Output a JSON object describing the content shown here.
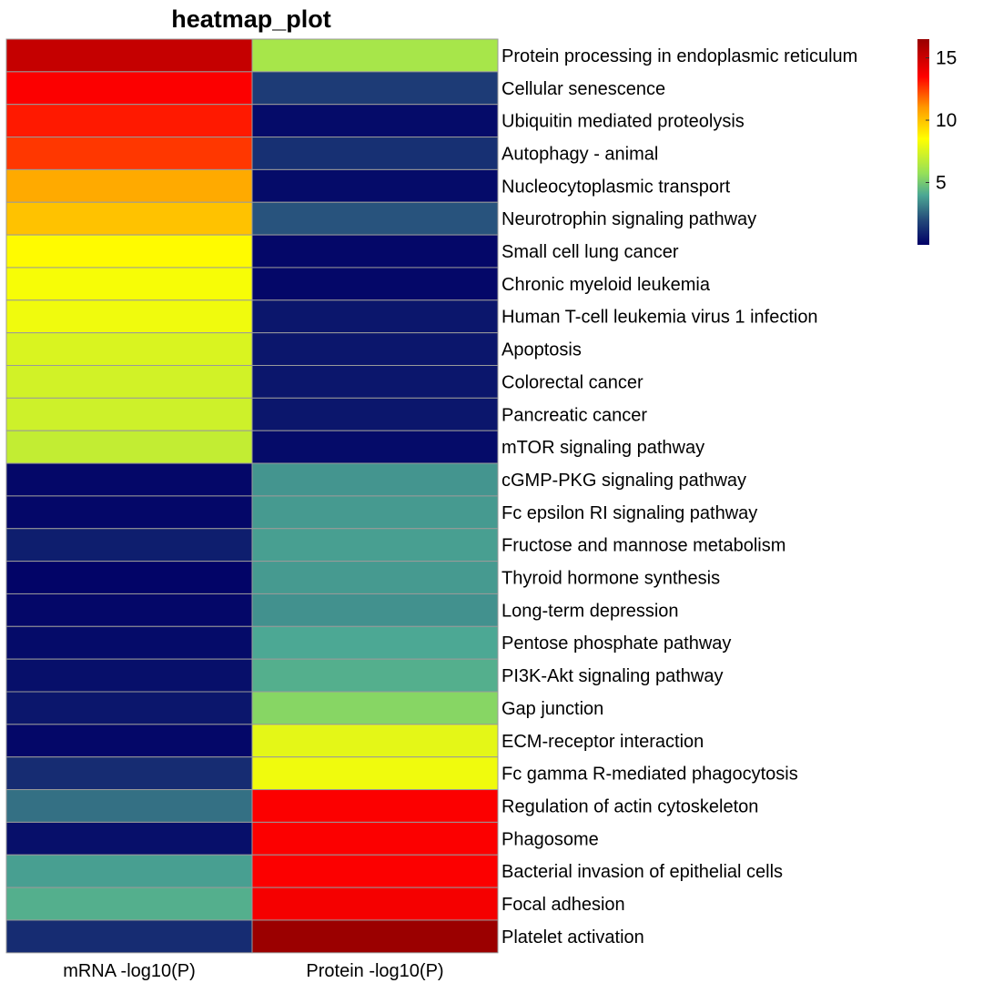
{
  "chart_data": {
    "type": "heatmap",
    "title": "heatmap_plot",
    "columns": [
      "mRNA -log10(P)",
      "Protein -log10(P)"
    ],
    "rows": [
      "Protein processing in endoplasmic reticulum",
      "Cellular senescence",
      "Ubiquitin mediated proteolysis",
      "Autophagy - animal",
      "Nucleocytoplasmic transport",
      "Neurotrophin signaling pathway",
      "Small cell lung cancer",
      "Chronic myeloid leukemia",
      "Human T-cell leukemia virus 1 infection",
      "Apoptosis",
      "Colorectal cancer",
      "Pancreatic cancer",
      "mTOR signaling pathway",
      "cGMP-PKG signaling pathway",
      "Fc epsilon RI signaling pathway",
      "Fructose and mannose metabolism",
      "Thyroid hormone synthesis",
      "Long-term depression",
      "Pentose phosphate pathway",
      "PI3K-Akt signaling pathway",
      "Gap junction",
      "ECM-receptor interaction",
      "Fc gamma R-mediated phagocytosis",
      "Regulation of actin cytoskeleton",
      "Phagosome",
      "Bacterial invasion of epithelial cells",
      "Focal adhesion",
      "Platelet activation"
    ],
    "values": [
      [
        15.2,
        6.2
      ],
      [
        13.6,
        1.6
      ],
      [
        13.1,
        0.3
      ],
      [
        12.6,
        1.3
      ],
      [
        10.6,
        0.3
      ],
      [
        10.0,
        2.2
      ],
      [
        8.6,
        0.2
      ],
      [
        8.3,
        0.2
      ],
      [
        8.1,
        0.6
      ],
      [
        7.5,
        0.6
      ],
      [
        7.3,
        0.6
      ],
      [
        7.2,
        0.6
      ],
      [
        6.9,
        0.3
      ],
      [
        0.2,
        3.6
      ],
      [
        0.2,
        3.7
      ],
      [
        0.8,
        3.8
      ],
      [
        0.1,
        3.7
      ],
      [
        0.2,
        3.5
      ],
      [
        0.3,
        4.0
      ],
      [
        0.4,
        4.2
      ],
      [
        0.6,
        5.4
      ],
      [
        0.2,
        7.8
      ],
      [
        1.2,
        8.1
      ],
      [
        2.8,
        13.6
      ],
      [
        0.4,
        13.6
      ],
      [
        3.8,
        13.6
      ],
      [
        4.2,
        13.8
      ],
      [
        1.2,
        16.4
      ]
    ],
    "color_scale": {
      "stops": [
        {
          "value": 0.0,
          "color": "#000066"
        },
        {
          "value": 2.0,
          "color": "#244a7a"
        },
        {
          "value": 4.0,
          "color": "#4ca894"
        },
        {
          "value": 5.7,
          "color": "#94e05a"
        },
        {
          "value": 8.5,
          "color": "#ffff00"
        },
        {
          "value": 11.0,
          "color": "#ff9a00"
        },
        {
          "value": 13.5,
          "color": "#ff0000"
        },
        {
          "value": 16.5,
          "color": "#980000"
        }
      ],
      "min": 0,
      "max": 16.5
    },
    "legend": {
      "ticks": [
        5,
        10,
        15
      ],
      "tick_labels": [
        "5",
        "10",
        "15"
      ],
      "position": "top-right"
    }
  }
}
